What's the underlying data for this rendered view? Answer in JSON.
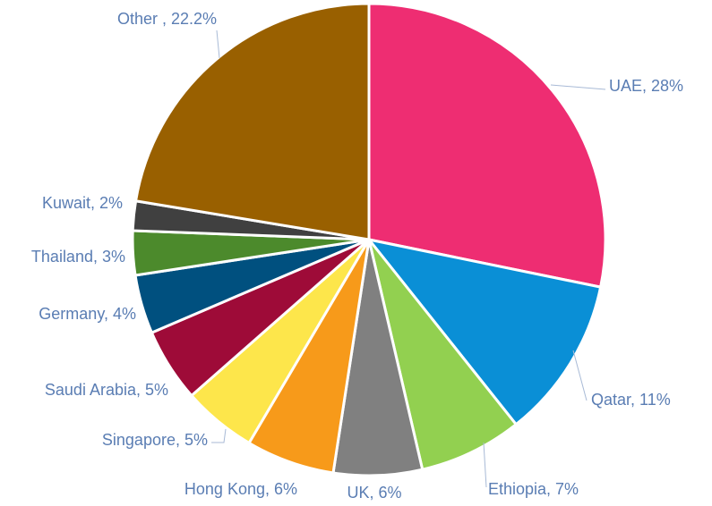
{
  "chart_data": {
    "type": "pie",
    "categories": [
      "UAE",
      "Qatar",
      "Ethiopia",
      "UK",
      "Hong Kong",
      "Singapore",
      "Saudi Arabia",
      "Germany",
      "Thailand",
      "Kuwait",
      "Other"
    ],
    "values": [
      28,
      11,
      7,
      6,
      6,
      5,
      5,
      4,
      3,
      2,
      22.2
    ],
    "value_labels": [
      "UAE, 28%",
      "Qatar, 11%",
      "Ethiopia, 7%",
      "UK, 6%",
      "Hong Kong, 6%",
      "Singapore, 5%",
      "Saudi Arabia, 5%",
      "Germany, 4%",
      "Thailand, 3%",
      "Kuwait, 2%",
      "Other , 22.2%"
    ],
    "colors": [
      "#ee2d72",
      "#0a8fd6",
      "#92d050",
      "#808080",
      "#f79a1a",
      "#fde64b",
      "#9e0b38",
      "#00507f",
      "#4c8a2c",
      "#404040",
      "#996000"
    ]
  }
}
